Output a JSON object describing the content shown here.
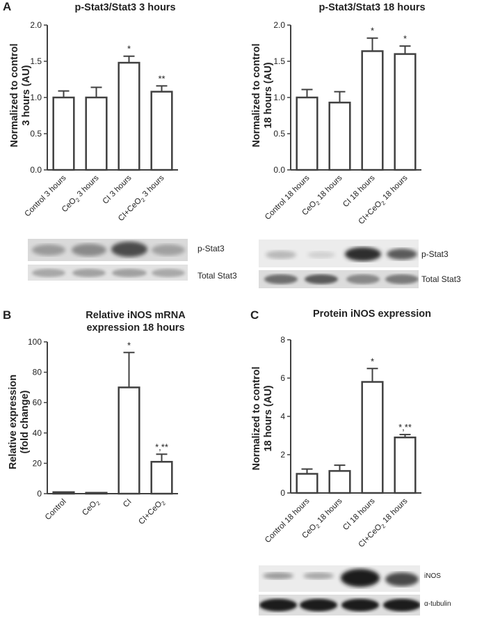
{
  "panels": [
    {
      "letter": "A"
    },
    {
      "letter": "B"
    },
    {
      "letter": "C"
    }
  ],
  "chart_data": [
    {
      "type": "bar",
      "title": "p-Stat3/Stat3 3 hours",
      "ylabel_lines": [
        "Normalized to control",
        "3 hours (AU)"
      ],
      "categories": [
        "Control 3 hours",
        "CeO2 3 hours",
        "CI 3 hours",
        "CI+CeO2 3 hours"
      ],
      "values": [
        1.0,
        1.0,
        1.48,
        1.08
      ],
      "errors": [
        0.09,
        0.14,
        0.09,
        0.08
      ],
      "annotations": [
        "",
        "",
        "*",
        "**"
      ],
      "ylim": [
        0,
        2.0
      ],
      "yticks": [
        "0.0",
        "0.5",
        "1.0",
        "1.5",
        "2.0"
      ],
      "blot_labels": [
        "p-Stat3",
        "Total Stat3"
      ]
    },
    {
      "type": "bar",
      "title": "p-Stat3/Stat3 18 hours",
      "ylabel_lines": [
        "Normalized to control",
        "18 hours (AU)"
      ],
      "categories": [
        "Control 18 hours",
        "CeO2 18 hours",
        "CI 18 hours",
        "CI+CeO2 18 hours"
      ],
      "values": [
        1.0,
        0.93,
        1.64,
        1.6
      ],
      "errors": [
        0.11,
        0.15,
        0.18,
        0.11
      ],
      "annotations": [
        "",
        "",
        "*",
        "*"
      ],
      "ylim": [
        0,
        2.0
      ],
      "yticks": [
        "0.0",
        "0.5",
        "1.0",
        "1.5",
        "2.0"
      ],
      "blot_labels": [
        "p-Stat3",
        "Total Stat3"
      ]
    },
    {
      "type": "bar",
      "title_lines": [
        "Relative iNOS mRNA",
        "expression 18 hours"
      ],
      "ylabel_lines": [
        "Relative expression",
        "(fold change)"
      ],
      "categories": [
        "Control",
        "CeO2",
        "CI",
        "CI+CeO2"
      ],
      "values": [
        1.0,
        0.6,
        70.0,
        21.0
      ],
      "errors": [
        0,
        0,
        23.0,
        5.0
      ],
      "annotations": [
        "",
        "",
        "*",
        "*,**"
      ],
      "ylim": [
        0,
        100
      ],
      "yticks": [
        "0",
        "20",
        "40",
        "60",
        "80",
        "100"
      ]
    },
    {
      "type": "bar",
      "title": "Protein iNOS expression",
      "ylabel_lines": [
        "Normalized to control",
        "18 hours (AU)"
      ],
      "categories": [
        "Control 18 hours",
        "CeO2 18 hours",
        "CI 18 hours",
        "CI+CeO2 18 hours"
      ],
      "values": [
        1.0,
        1.15,
        5.8,
        2.9
      ],
      "errors": [
        0.25,
        0.3,
        0.7,
        0.15
      ],
      "annotations": [
        "",
        "",
        "*",
        "*,**"
      ],
      "ylim": [
        0,
        8
      ],
      "yticks": [
        "0",
        "2",
        "4",
        "6",
        "8"
      ],
      "blot_labels": [
        "iNOS",
        "α-tubulin"
      ]
    }
  ]
}
